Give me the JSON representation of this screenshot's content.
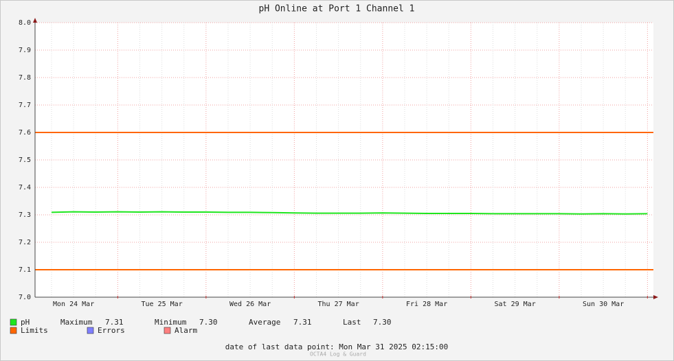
{
  "chart_data": {
    "type": "line",
    "title": "pH Online at Port 1 Channel 1",
    "categories": [
      null,
      "Mon 24 Mar",
      null,
      null,
      null,
      "Tue 25 Mar",
      null,
      null,
      null,
      "Wed 26 Mar",
      null,
      null,
      null,
      "Thu 27 Mar",
      null,
      null,
      null,
      "Fri 28 Mar",
      null,
      null,
      null,
      "Sat 29 Mar",
      null,
      null,
      null,
      "Sun 30 Mar",
      null,
      null
    ],
    "series": [
      {
        "name": "pH",
        "color": "#1ee61e",
        "values": [
          7.309,
          7.311,
          7.31,
          7.311,
          7.31,
          7.311,
          7.31,
          7.31,
          7.309,
          7.309,
          7.308,
          7.307,
          7.306,
          7.306,
          7.306,
          7.307,
          7.306,
          7.305,
          7.305,
          7.305,
          7.304,
          7.304,
          7.304,
          7.304,
          7.303,
          7.304,
          7.303,
          7.304
        ]
      }
    ],
    "limits": {
      "name": "Limits",
      "color": "#ff6600",
      "values": [
        7.6,
        7.1
      ]
    },
    "extra_legend": [
      {
        "name": "Errors",
        "color": "#7f7fff"
      },
      {
        "name": "Alarm",
        "color": "#ff7f7f"
      }
    ],
    "stats": [
      {
        "label": "Maximum",
        "value": "7.31"
      },
      {
        "label": "Minimum",
        "value": "7.30"
      },
      {
        "label": "Average",
        "value": "7.31"
      },
      {
        "label": "Last",
        "value": "7.30"
      }
    ],
    "ylim": [
      7.0,
      8.0
    ],
    "yticks": [
      {
        "value": 7.0,
        "label": "7.0"
      },
      7.1,
      7.2,
      7.3,
      7.4,
      7.5,
      7.6,
      7.7,
      7.8,
      7.9,
      {
        "value": 8.0,
        "label": "8.0"
      }
    ],
    "grid": true,
    "footer": "date of last data point:  Mon Mar 31 2025 02:15:00",
    "watermark": "OCTA4 Log & Guard"
  }
}
